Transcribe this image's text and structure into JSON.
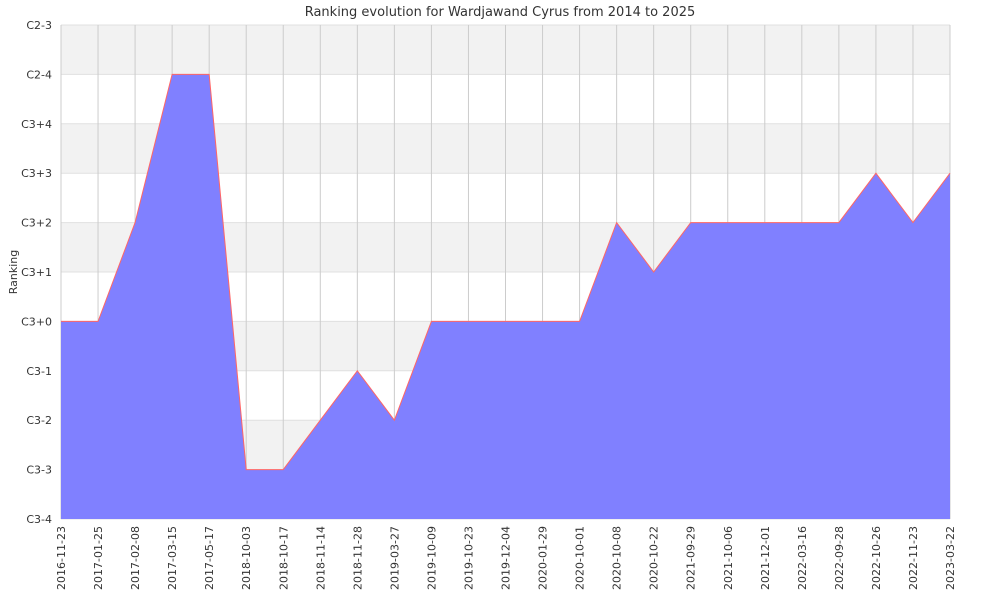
{
  "chart_data": {
    "type": "area",
    "title": "Ranking evolution for Wardjawand Cyrus from 2014 to 2025",
    "xlabel": "",
    "ylabel": "Ranking",
    "y_ticks": [
      "C3-4",
      "C3-3",
      "C3-2",
      "C3-1",
      "C3+0",
      "C3+1",
      "C3+2",
      "C3+3",
      "C3+4",
      "C2-4",
      "C2-3"
    ],
    "ylim": [
      0,
      10
    ],
    "x": [
      "2016-11-23",
      "2017-01-25",
      "2017-02-08",
      "2017-03-15",
      "2017-05-17",
      "2018-10-03",
      "2018-10-17",
      "2018-11-14",
      "2018-11-28",
      "2019-03-27",
      "2019-10-09",
      "2019-10-23",
      "2019-12-04",
      "2020-01-29",
      "2020-10-01",
      "2020-10-08",
      "2020-10-22",
      "2021-09-29",
      "2021-10-06",
      "2021-12-01",
      "2022-03-16",
      "2022-09-28",
      "2022-10-26",
      "2022-11-23",
      "2023-03-22"
    ],
    "series": [
      {
        "values": [
          4,
          4,
          6,
          9,
          9,
          1,
          1,
          2,
          3,
          2,
          4,
          4,
          4,
          4,
          4,
          6,
          5,
          6,
          6,
          6,
          6,
          6,
          7,
          6,
          7
        ]
      }
    ],
    "fill_color": "#8080ff",
    "line_color": "#ff6666",
    "grid": true,
    "band_color": "#f2f2f2"
  }
}
